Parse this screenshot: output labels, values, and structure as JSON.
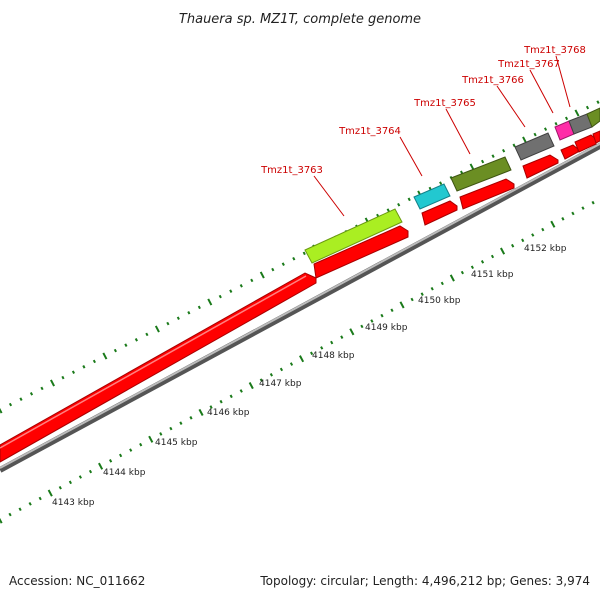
{
  "title": "Thauera sp. MZ1T, complete genome",
  "footer": {
    "accession": "Accession: NC_011662",
    "summary": "Topology: circular; Length: 4,496,212 bp; Genes: 3,974"
  },
  "ruler": {
    "unit": "kbp",
    "labels": [
      "4143 kbp",
      "4144 kbp",
      "4145 kbp",
      "4146 kbp",
      "4147 kbp",
      "4148 kbp",
      "4149 kbp",
      "4150 kbp",
      "4151 kbp",
      "4152 kbp"
    ]
  },
  "genes": [
    {
      "locus_tag": "Tmz1t_3763",
      "color": "#aaee22"
    },
    {
      "locus_tag": "Tmz1t_3764",
      "color": "#22c8d0"
    },
    {
      "locus_tag": "Tmz1t_3765",
      "color": "#6b8e23"
    },
    {
      "locus_tag": "Tmz1t_3766",
      "color": "#707070"
    },
    {
      "locus_tag": "Tmz1t_3767",
      "color": "#ff2ca8"
    },
    {
      "locus_tag": "Tmz1t_3768",
      "color": "#707070"
    }
  ],
  "colors": {
    "cds": "#ff0000",
    "label": "#cc0000",
    "tick": "#1a7a1a",
    "backbone": "#999999"
  }
}
